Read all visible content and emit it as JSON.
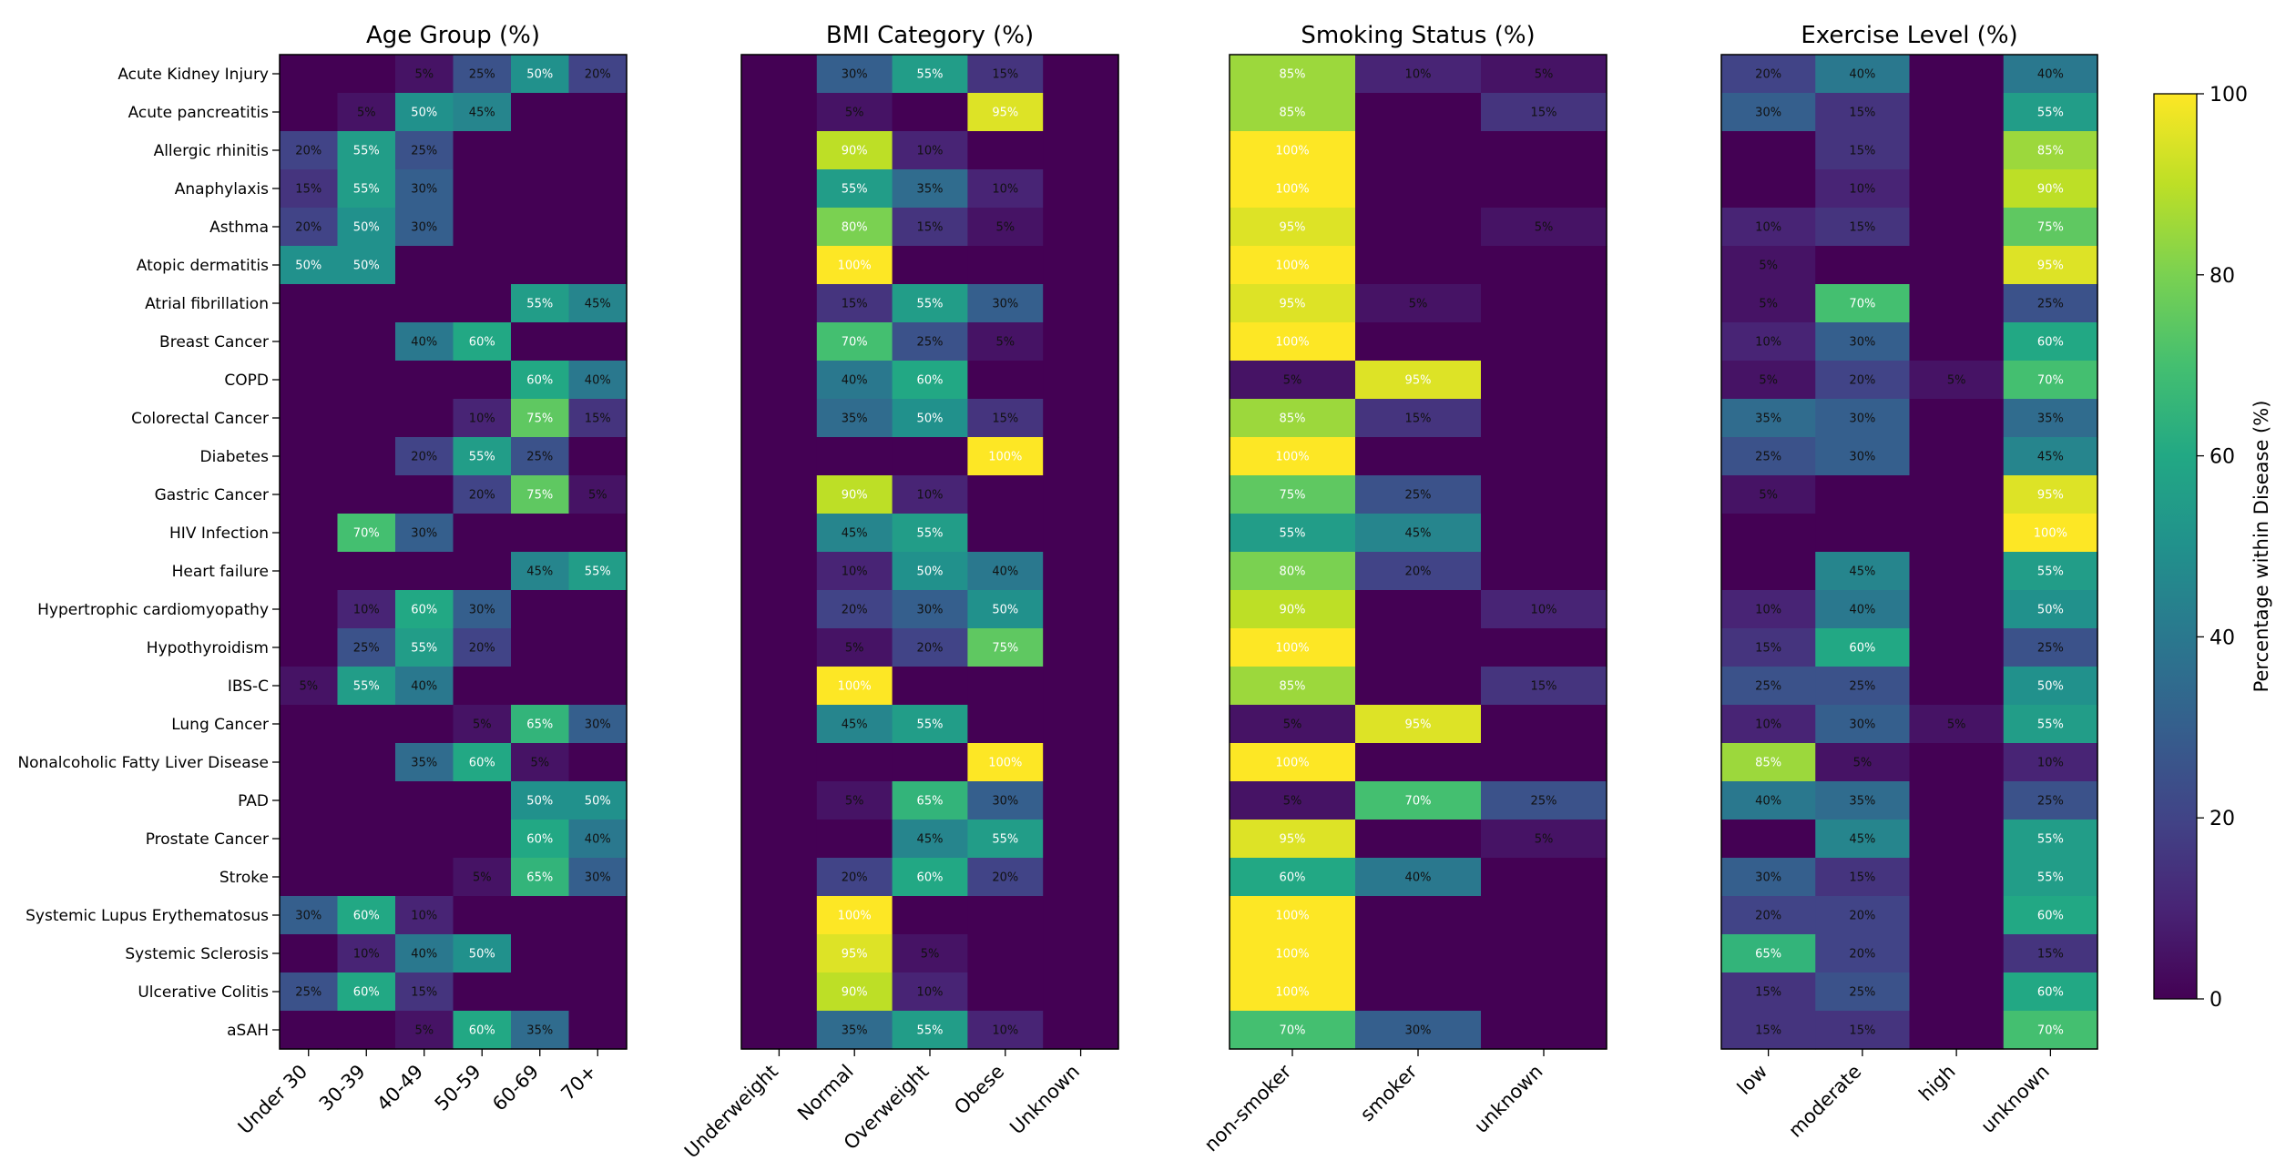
{
  "chart_data": {
    "type": "heatmap",
    "diseases": [
      "Acute Kidney Injury",
      "Acute pancreatitis",
      "Allergic rhinitis",
      "Anaphylaxis",
      "Asthma",
      "Atopic dermatitis",
      "Atrial fibrillation",
      "Breast Cancer",
      "COPD",
      "Colorectal Cancer",
      "Diabetes",
      "Gastric Cancer",
      "HIV Infection",
      "Heart failure",
      "Hypertrophic cardiomyopathy",
      "Hypothyroidism",
      "IBS-C",
      "Lung Cancer",
      "Nonalcoholic Fatty Liver Disease",
      "PAD",
      "Prostate Cancer",
      "Stroke",
      "Systemic Lupus Erythematosus",
      "Systemic Sclerosis",
      "Ulcerative Colitis",
      "aSAH"
    ],
    "panels": [
      {
        "title": "Age Group (%)",
        "categories": [
          "Under 30",
          "30-39",
          "40-49",
          "50-59",
          "60-69",
          "70+"
        ],
        "values": [
          [
            0,
            0,
            5,
            25,
            50,
            20
          ],
          [
            0,
            5,
            50,
            45,
            0,
            0
          ],
          [
            20,
            55,
            25,
            0,
            0,
            0
          ],
          [
            15,
            55,
            30,
            0,
            0,
            0
          ],
          [
            20,
            50,
            30,
            0,
            0,
            0
          ],
          [
            50,
            50,
            0,
            0,
            0,
            0
          ],
          [
            0,
            0,
            0,
            0,
            55,
            45
          ],
          [
            0,
            0,
            40,
            60,
            0,
            0
          ],
          [
            0,
            0,
            0,
            0,
            60,
            40
          ],
          [
            0,
            0,
            0,
            10,
            75,
            15
          ],
          [
            0,
            0,
            20,
            55,
            25,
            0
          ],
          [
            0,
            0,
            0,
            20,
            75,
            5
          ],
          [
            0,
            70,
            30,
            0,
            0,
            0
          ],
          [
            0,
            0,
            0,
            0,
            45,
            55
          ],
          [
            0,
            10,
            60,
            30,
            0,
            0
          ],
          [
            0,
            25,
            55,
            20,
            0,
            0
          ],
          [
            5,
            55,
            40,
            0,
            0,
            0
          ],
          [
            0,
            0,
            0,
            5,
            65,
            30
          ],
          [
            0,
            0,
            35,
            60,
            5,
            0
          ],
          [
            0,
            0,
            0,
            0,
            50,
            50
          ],
          [
            0,
            0,
            0,
            0,
            60,
            40
          ],
          [
            0,
            0,
            0,
            5,
            65,
            30
          ],
          [
            30,
            60,
            10,
            0,
            0,
            0
          ],
          [
            0,
            10,
            40,
            50,
            0,
            0
          ],
          [
            25,
            60,
            15,
            0,
            0,
            0
          ],
          [
            0,
            0,
            5,
            60,
            35,
            0
          ]
        ]
      },
      {
        "title": "BMI Category (%)",
        "categories": [
          "Underweight",
          "Normal",
          "Overweight",
          "Obese",
          "Unknown"
        ],
        "values": [
          [
            0,
            30,
            55,
            15,
            0
          ],
          [
            0,
            5,
            0,
            95,
            0
          ],
          [
            0,
            90,
            10,
            0,
            0
          ],
          [
            0,
            55,
            35,
            10,
            0
          ],
          [
            0,
            80,
            15,
            5,
            0
          ],
          [
            0,
            100,
            0,
            0,
            0
          ],
          [
            0,
            15,
            55,
            30,
            0
          ],
          [
            0,
            70,
            25,
            5,
            0
          ],
          [
            0,
            40,
            60,
            0,
            0
          ],
          [
            0,
            35,
            50,
            15,
            0
          ],
          [
            0,
            0,
            0,
            100,
            0
          ],
          [
            0,
            90,
            10,
            0,
            0
          ],
          [
            0,
            45,
            55,
            0,
            0
          ],
          [
            0,
            10,
            50,
            40,
            0
          ],
          [
            0,
            20,
            30,
            50,
            0
          ],
          [
            0,
            5,
            20,
            75,
            0
          ],
          [
            0,
            100,
            0,
            0,
            0
          ],
          [
            0,
            45,
            55,
            0,
            0
          ],
          [
            0,
            0,
            0,
            100,
            0
          ],
          [
            0,
            5,
            65,
            30,
            0
          ],
          [
            0,
            0,
            45,
            55,
            0
          ],
          [
            0,
            20,
            60,
            20,
            0
          ],
          [
            0,
            100,
            0,
            0,
            0
          ],
          [
            0,
            95,
            5,
            0,
            0
          ],
          [
            0,
            90,
            10,
            0,
            0
          ],
          [
            0,
            35,
            55,
            10,
            0
          ]
        ]
      },
      {
        "title": "Smoking Status (%)",
        "categories": [
          "non-smoker",
          "smoker",
          "unknown"
        ],
        "values": [
          [
            85,
            10,
            5
          ],
          [
            85,
            0,
            15
          ],
          [
            100,
            0,
            0
          ],
          [
            100,
            0,
            0
          ],
          [
            95,
            0,
            5
          ],
          [
            100,
            0,
            0
          ],
          [
            95,
            5,
            0
          ],
          [
            100,
            0,
            0
          ],
          [
            5,
            95,
            0
          ],
          [
            85,
            15,
            0
          ],
          [
            100,
            0,
            0
          ],
          [
            75,
            25,
            0
          ],
          [
            55,
            45,
            0
          ],
          [
            80,
            20,
            0
          ],
          [
            90,
            0,
            10
          ],
          [
            100,
            0,
            0
          ],
          [
            85,
            0,
            15
          ],
          [
            5,
            95,
            0
          ],
          [
            100,
            0,
            0
          ],
          [
            5,
            70,
            25
          ],
          [
            95,
            0,
            5
          ],
          [
            60,
            40,
            0
          ],
          [
            100,
            0,
            0
          ],
          [
            100,
            0,
            0
          ],
          [
            100,
            0,
            0
          ],
          [
            70,
            30,
            0
          ]
        ]
      },
      {
        "title": "Exercise Level (%)",
        "categories": [
          "low",
          "moderate",
          "high",
          "unknown"
        ],
        "values": [
          [
            20,
            40,
            0,
            40
          ],
          [
            30,
            15,
            0,
            55
          ],
          [
            0,
            15,
            0,
            85
          ],
          [
            0,
            10,
            0,
            90
          ],
          [
            10,
            15,
            0,
            75
          ],
          [
            5,
            0,
            0,
            95
          ],
          [
            5,
            70,
            0,
            25
          ],
          [
            10,
            30,
            0,
            60
          ],
          [
            5,
            20,
            5,
            70
          ],
          [
            35,
            30,
            0,
            35
          ],
          [
            25,
            30,
            0,
            45
          ],
          [
            5,
            0,
            0,
            95
          ],
          [
            0,
            0,
            0,
            100
          ],
          [
            0,
            45,
            0,
            55
          ],
          [
            10,
            40,
            0,
            50
          ],
          [
            15,
            60,
            0,
            25
          ],
          [
            25,
            25,
            0,
            50
          ],
          [
            10,
            30,
            5,
            55
          ],
          [
            85,
            5,
            0,
            10
          ],
          [
            40,
            35,
            0,
            25
          ],
          [
            0,
            45,
            0,
            55
          ],
          [
            30,
            15,
            0,
            55
          ],
          [
            20,
            20,
            0,
            60
          ],
          [
            65,
            20,
            0,
            15
          ],
          [
            15,
            25,
            0,
            60
          ],
          [
            15,
            15,
            0,
            70
          ]
        ]
      }
    ],
    "colorbar": {
      "label": "Percentage within Disease (%)",
      "range": [
        0,
        100
      ],
      "ticks": [
        0,
        20,
        40,
        60,
        80,
        100
      ],
      "colormap": "viridis"
    },
    "value_suffix": "%"
  }
}
